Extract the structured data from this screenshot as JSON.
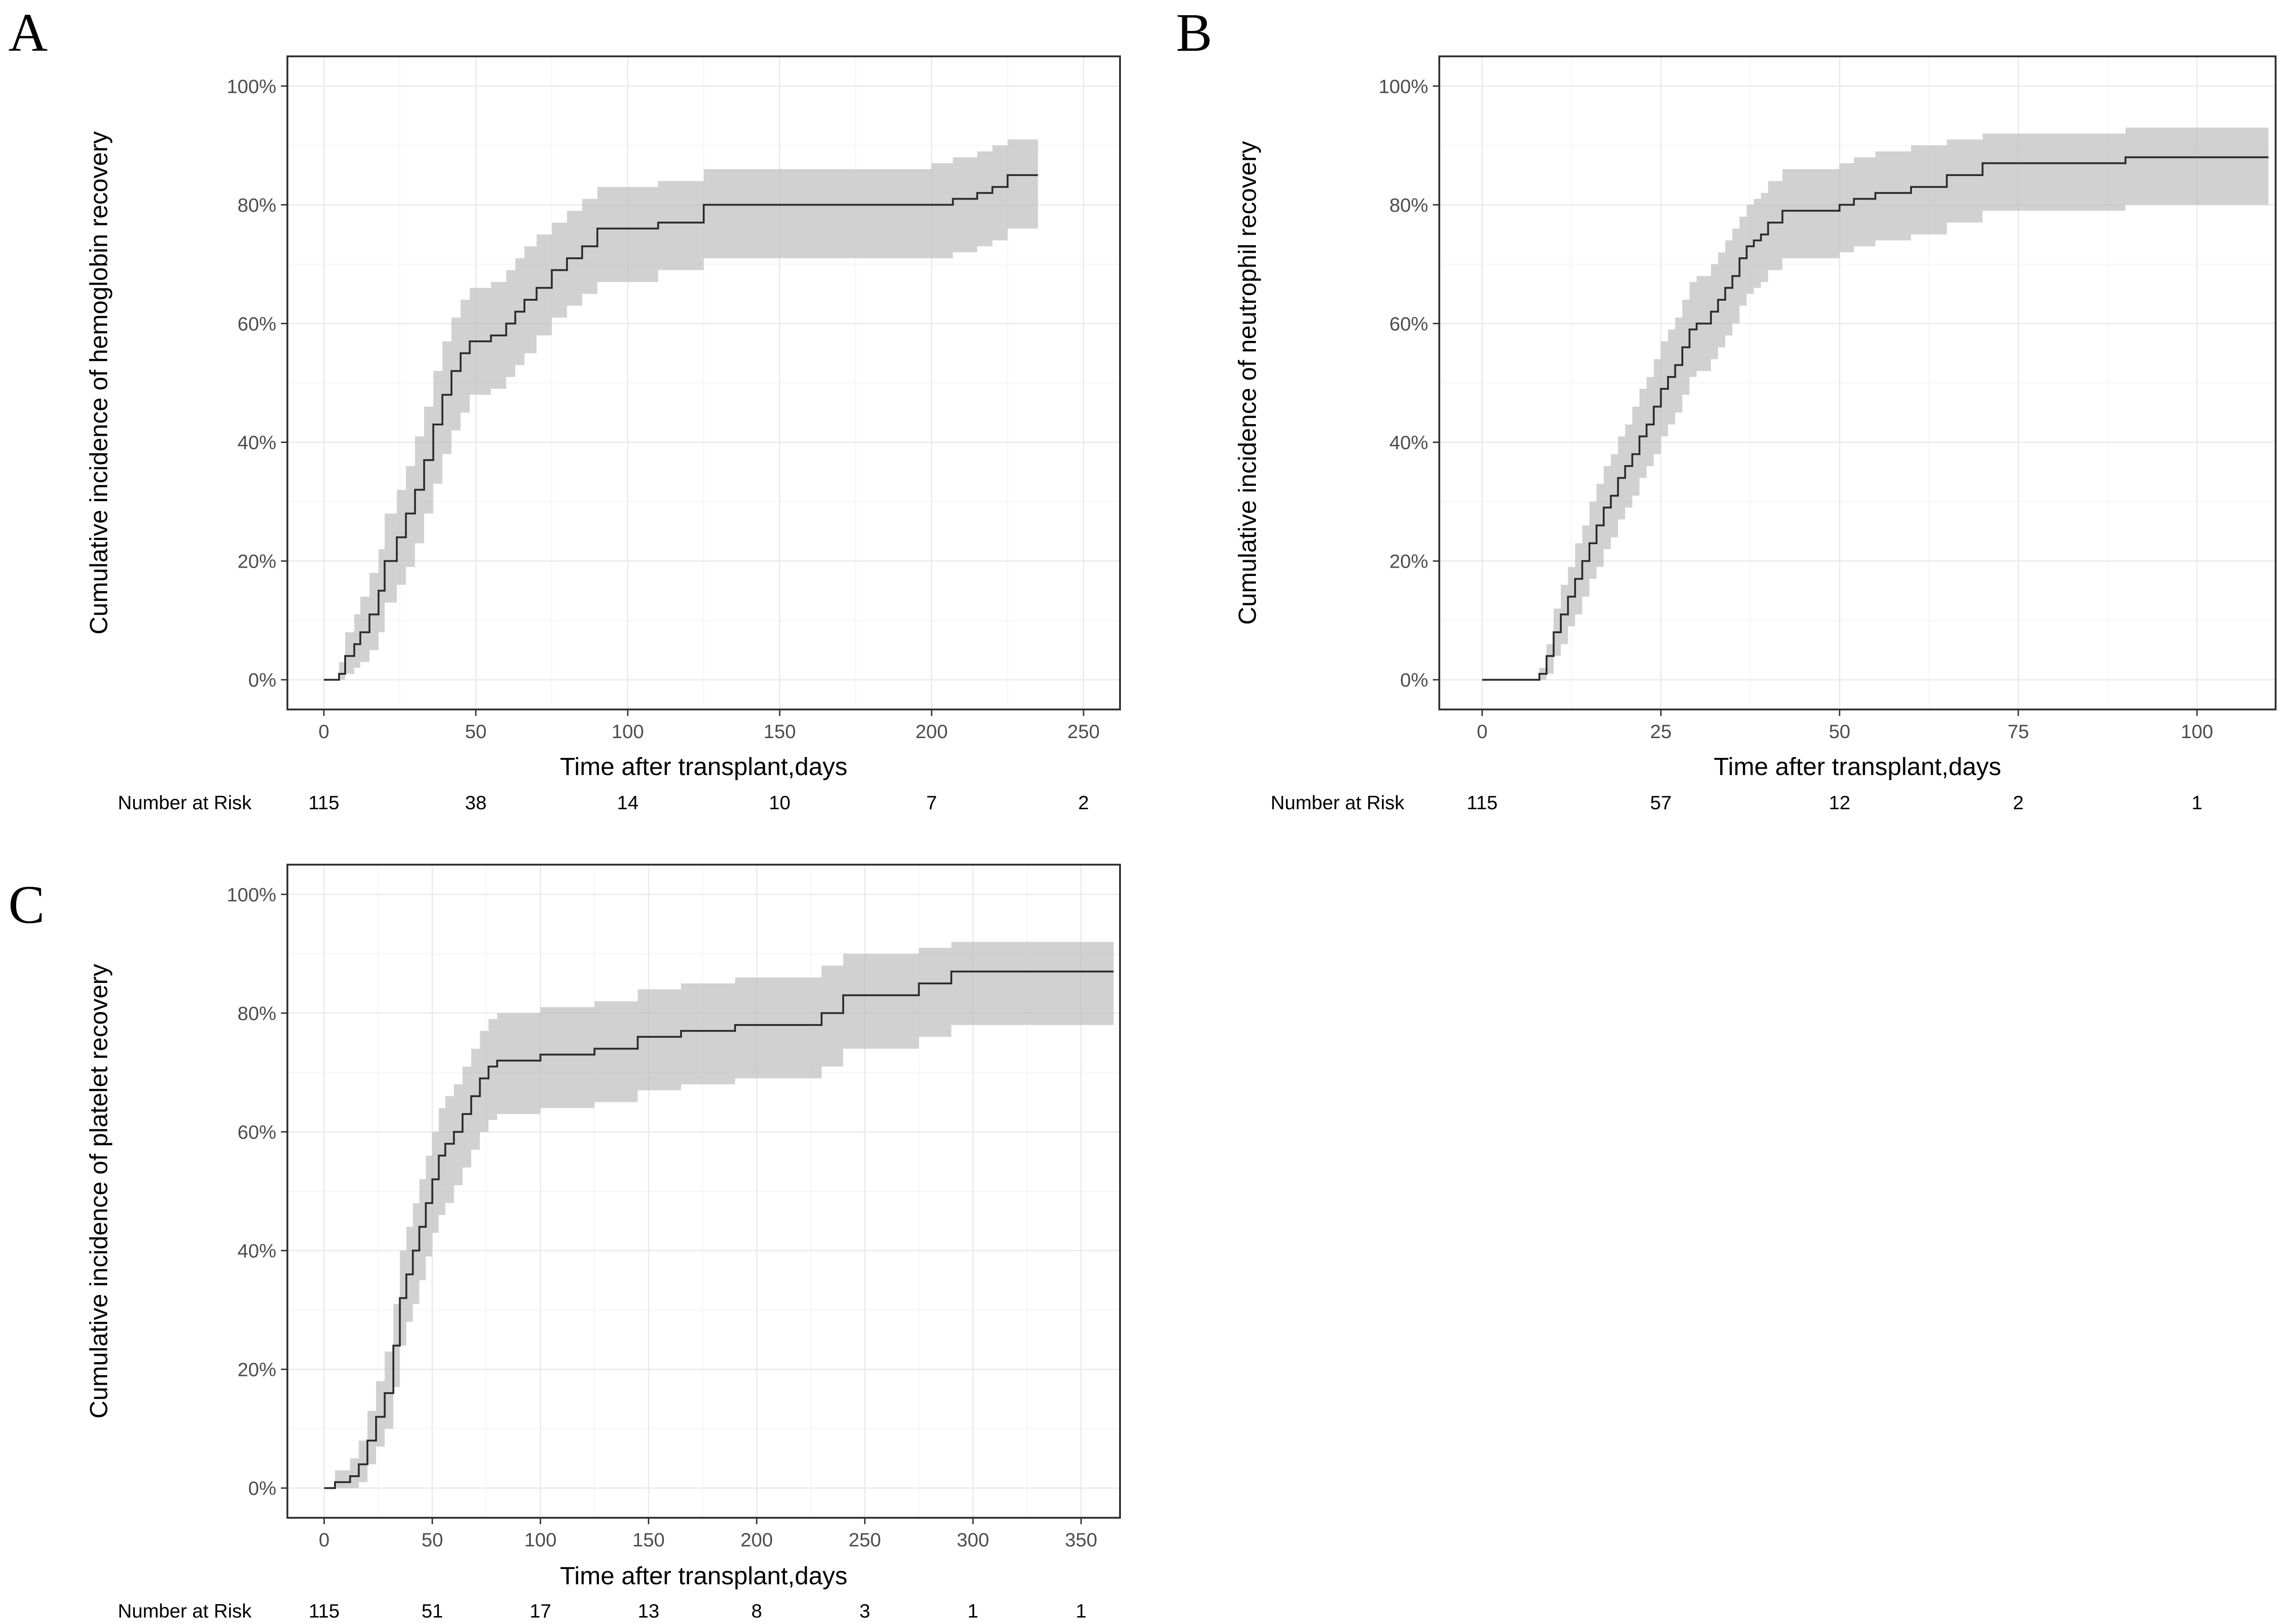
{
  "chart_data": [
    {
      "panel": "A",
      "type": "line",
      "step": true,
      "xlabel": "Time after transplant,days",
      "ylabel": "Cumulative incidence of hemoglobin recovery",
      "xlim": [
        -12,
        262
      ],
      "ylim": [
        -5,
        105
      ],
      "xticks": [
        0,
        50,
        100,
        150,
        200,
        250
      ],
      "xtick_labels": [
        "0",
        "50",
        "100",
        "150",
        "200",
        "250"
      ],
      "xminor": [
        25,
        75,
        125,
        175,
        225
      ],
      "yticks": [
        0,
        20,
        40,
        60,
        80,
        100
      ],
      "ytick_labels": [
        "0%",
        "20%",
        "40%",
        "60%",
        "80%",
        "100%"
      ],
      "yminor": [
        10,
        30,
        50,
        70,
        90
      ],
      "grid": true,
      "series": [
        {
          "name": "Cumulative incidence",
          "x": [
            0,
            5,
            7,
            10,
            12,
            15,
            18,
            20,
            24,
            27,
            30,
            33,
            36,
            39,
            42,
            45,
            48,
            55,
            60,
            63,
            66,
            70,
            75,
            80,
            85,
            90,
            95,
            110,
            125,
            200,
            207,
            215,
            220,
            225,
            235
          ],
          "y": [
            0,
            1,
            4,
            6,
            8,
            11,
            15,
            20,
            24,
            28,
            32,
            37,
            43,
            48,
            52,
            55,
            57,
            58,
            60,
            62,
            64,
            66,
            69,
            71,
            73,
            76,
            76,
            77,
            80,
            80,
            81,
            82,
            83,
            85,
            85
          ],
          "lower": [
            0,
            0,
            1,
            2,
            3,
            5,
            8,
            13,
            16,
            19,
            23,
            28,
            33,
            38,
            42,
            45,
            48,
            49,
            51,
            53,
            55,
            58,
            61,
            63,
            65,
            67,
            67,
            69,
            71,
            71,
            72,
            73,
            74,
            76,
            76
          ],
          "upper": [
            0,
            3,
            8,
            11,
            14,
            18,
            22,
            28,
            32,
            36,
            41,
            46,
            52,
            57,
            61,
            64,
            66,
            67,
            69,
            71,
            73,
            75,
            77,
            79,
            81,
            83,
            83,
            84,
            86,
            87,
            88,
            89,
            90,
            91,
            91
          ]
        }
      ],
      "risk_table": {
        "label": "Number at Risk",
        "times": [
          0,
          50,
          100,
          150,
          200,
          250
        ],
        "counts": [
          "115",
          "38",
          "14",
          "10",
          "7",
          "2"
        ]
      }
    },
    {
      "panel": "B",
      "type": "line",
      "step": true,
      "xlabel": "Time after transplant,days",
      "ylabel": "Cumulative incidence of neutrophil recovery",
      "xlim": [
        -6,
        111
      ],
      "ylim": [
        -5,
        105
      ],
      "xticks": [
        0,
        25,
        50,
        75,
        100
      ],
      "xtick_labels": [
        "0",
        "25",
        "50",
        "75",
        "100"
      ],
      "xminor": [
        12.5,
        37.5,
        62.5,
        87.5
      ],
      "yticks": [
        0,
        20,
        40,
        60,
        80,
        100
      ],
      "ytick_labels": [
        "0%",
        "20%",
        "40%",
        "60%",
        "80%",
        "100%"
      ],
      "yminor": [
        10,
        30,
        50,
        70,
        90
      ],
      "grid": true,
      "series": [
        {
          "name": "Cumulative incidence",
          "x": [
            0,
            8,
            9,
            10,
            11,
            12,
            13,
            14,
            15,
            16,
            17,
            18,
            19,
            20,
            21,
            22,
            23,
            24,
            25,
            26,
            27,
            28,
            29,
            30,
            32,
            33,
            34,
            35,
            36,
            37,
            38,
            39,
            40,
            42,
            45,
            50,
            52,
            55,
            60,
            65,
            70,
            90,
            110
          ],
          "y": [
            0,
            1,
            4,
            8,
            11,
            14,
            17,
            20,
            23,
            26,
            29,
            31,
            34,
            36,
            38,
            41,
            43,
            46,
            49,
            51,
            53,
            56,
            59,
            60,
            62,
            64,
            66,
            68,
            71,
            73,
            74,
            75,
            77,
            79,
            79,
            80,
            81,
            82,
            83,
            85,
            87,
            88,
            88
          ],
          "lower": [
            0,
            0,
            1,
            4,
            6,
            9,
            11,
            14,
            17,
            19,
            22,
            24,
            27,
            29,
            31,
            34,
            36,
            38,
            41,
            43,
            45,
            48,
            51,
            52,
            54,
            56,
            58,
            60,
            63,
            65,
            66,
            67,
            69,
            71,
            71,
            72,
            73,
            74,
            75,
            77,
            79,
            80,
            80
          ],
          "upper": [
            0,
            2,
            6,
            12,
            16,
            19,
            23,
            26,
            30,
            33,
            36,
            38,
            41,
            43,
            46,
            49,
            51,
            54,
            57,
            59,
            61,
            64,
            67,
            68,
            70,
            72,
            74,
            76,
            78,
            80,
            81,
            82,
            84,
            86,
            86,
            87,
            88,
            89,
            90,
            91,
            92,
            93,
            93
          ]
        }
      ],
      "risk_table": {
        "label": "Number at Risk",
        "times": [
          0,
          25,
          50,
          75,
          100
        ],
        "counts": [
          "115",
          "57",
          "12",
          "2",
          "1"
        ]
      }
    },
    {
      "panel": "C",
      "type": "line",
      "step": true,
      "xlabel": "Time after transplant,days",
      "ylabel": "Cumulative incidence of platelet recovery",
      "xlim": [
        -17,
        368
      ],
      "ylim": [
        -5,
        105
      ],
      "xticks": [
        0,
        50,
        100,
        150,
        200,
        250,
        300,
        350
      ],
      "xtick_labels": [
        "0",
        "50",
        "100",
        "150",
        "200",
        "250",
        "300",
        "350"
      ],
      "xminor": [
        25,
        75,
        125,
        175,
        225,
        275,
        325
      ],
      "yticks": [
        0,
        20,
        40,
        60,
        80,
        100
      ],
      "ytick_labels": [
        "0%",
        "20%",
        "40%",
        "60%",
        "80%",
        "100%"
      ],
      "yminor": [
        10,
        30,
        50,
        70,
        90
      ],
      "grid": true,
      "series": [
        {
          "name": "Cumulative incidence",
          "x": [
            0,
            5,
            12,
            16,
            20,
            24,
            28,
            32,
            35,
            38,
            41,
            44,
            47,
            50,
            53,
            56,
            60,
            64,
            68,
            72,
            76,
            80,
            100,
            125,
            145,
            165,
            190,
            230,
            240,
            275,
            290,
            365
          ],
          "y": [
            0,
            1,
            2,
            4,
            8,
            12,
            16,
            24,
            32,
            36,
            40,
            44,
            48,
            52,
            56,
            58,
            60,
            63,
            66,
            69,
            71,
            72,
            73,
            74,
            76,
            77,
            78,
            80,
            83,
            85,
            87,
            87
          ],
          "lower": [
            0,
            0,
            0,
            1,
            4,
            7,
            10,
            17,
            24,
            28,
            31,
            35,
            39,
            43,
            46,
            48,
            51,
            54,
            57,
            60,
            62,
            63,
            64,
            65,
            67,
            68,
            69,
            71,
            74,
            76,
            78,
            78
          ],
          "upper": [
            0,
            3,
            5,
            8,
            13,
            18,
            23,
            31,
            40,
            44,
            48,
            52,
            56,
            60,
            64,
            66,
            68,
            71,
            74,
            77,
            79,
            80,
            81,
            82,
            84,
            85,
            86,
            88,
            90,
            91,
            92,
            92
          ]
        }
      ],
      "risk_table": {
        "label": "Number at Risk",
        "times": [
          0,
          50,
          100,
          150,
          200,
          250,
          300,
          350
        ],
        "counts": [
          "115",
          "51",
          "17",
          "13",
          "8",
          "3",
          "1",
          "1"
        ]
      }
    }
  ]
}
